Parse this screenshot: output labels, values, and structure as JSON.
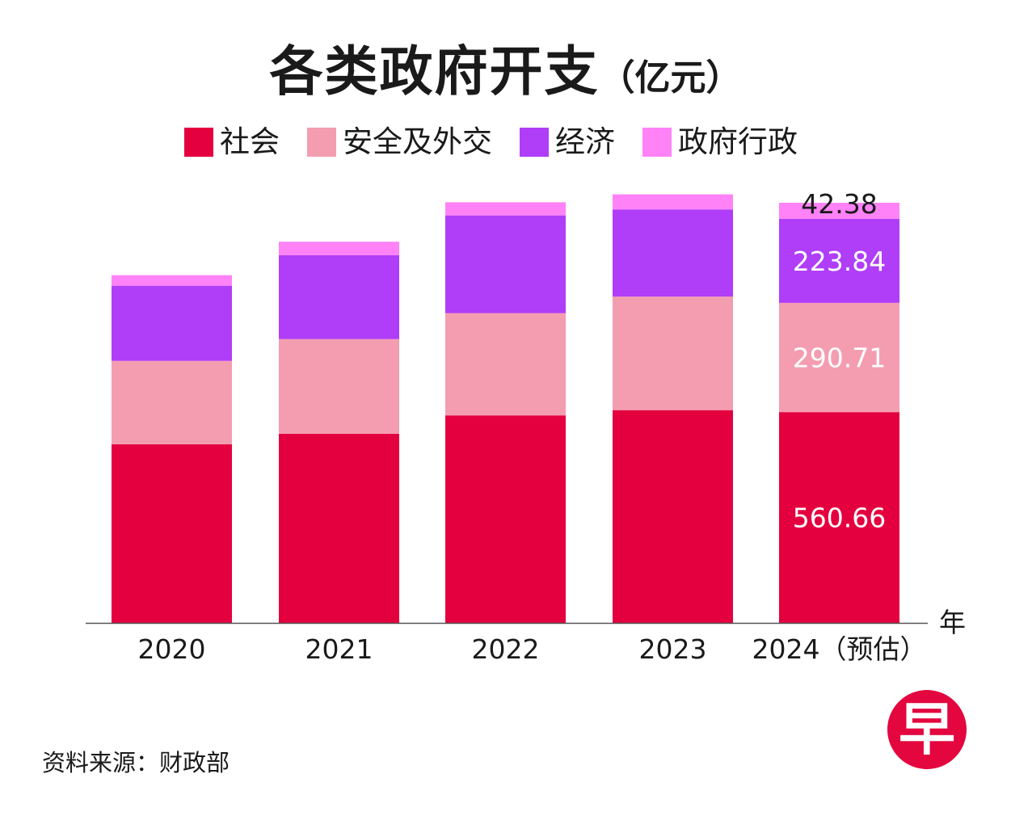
{
  "header": {
    "title": "各类政府开支",
    "unit": "（亿元）"
  },
  "source": "资料来源：财政部",
  "logo": {
    "text": "早",
    "icon": "zaobao-logo-icon",
    "color": "#e3063f"
  },
  "chart_data": {
    "type": "bar",
    "stacked": true,
    "title": "各类政府开支（亿元）",
    "xlabel": "年",
    "ylabel": "",
    "ylim": [
      0,
      1200
    ],
    "legend_position": "top",
    "categories": [
      "2020",
      "2021",
      "2022",
      "2023",
      "2024（预估）"
    ],
    "series": [
      {
        "name": "社会",
        "color": "#e4003f",
        "values": [
          475,
          503,
          552,
          566,
          560.66
        ]
      },
      {
        "name": "安全及外交",
        "color": "#f49db0",
        "values": [
          222,
          252,
          272,
          302,
          290.71
        ]
      },
      {
        "name": "经济",
        "color": "#b03df7",
        "values": [
          200,
          223,
          260,
          232,
          223.84
        ]
      },
      {
        "name": "政府行政",
        "color": "#ff82f7",
        "values": [
          28,
          36,
          35,
          40,
          42.38
        ]
      }
    ],
    "data_labels": [
      {
        "category": 4,
        "series": 0,
        "text": "560.66"
      },
      {
        "category": 4,
        "series": 1,
        "text": "290.71"
      },
      {
        "category": 4,
        "series": 2,
        "text": "223.84"
      },
      {
        "category": 4,
        "series": 3,
        "text": "42.38"
      }
    ]
  }
}
